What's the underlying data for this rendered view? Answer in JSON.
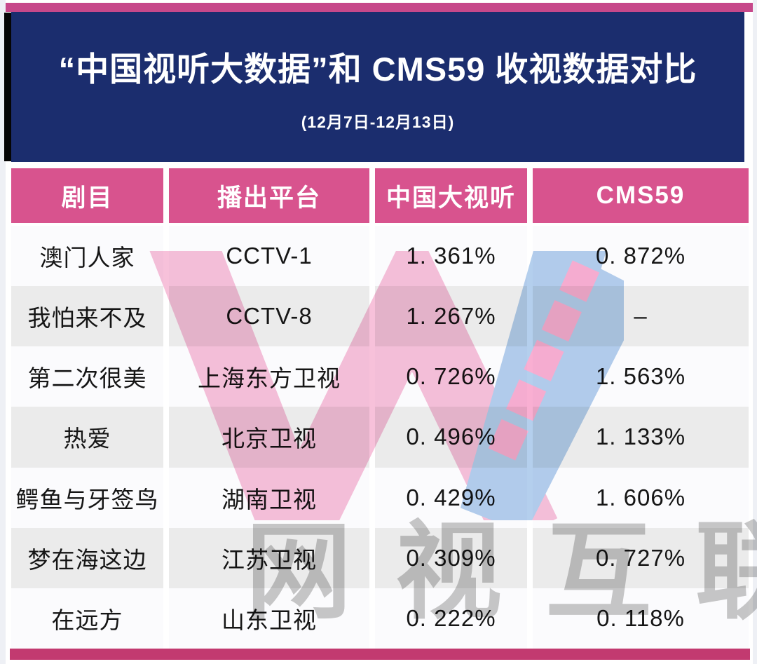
{
  "banner": {
    "title": "“中国视听大数据”和 CMS59 收视数据对比",
    "subtitle": "(12月7日-12月13日)"
  },
  "table": {
    "columns": [
      "剧目",
      "播出平台",
      "中国大视听",
      "CMS59"
    ],
    "rows": [
      {
        "show": "澳门人家",
        "platform": "CCTV-1",
        "big_data": "1. 361%",
        "cms59": "0. 872%"
      },
      {
        "show": "我怕来不及",
        "platform": "CCTV-8",
        "big_data": "1. 267%",
        "cms59": "–"
      },
      {
        "show": "第二次很美",
        "platform": "上海东方卫视",
        "big_data": "0. 726%",
        "cms59": "1. 563%"
      },
      {
        "show": "热爱",
        "platform": "北京卫视",
        "big_data": "0. 496%",
        "cms59": "1. 133%"
      },
      {
        "show": "鳄鱼与牙签鸟",
        "platform": "湖南卫视",
        "big_data": "0. 429%",
        "cms59": "1. 606%"
      },
      {
        "show": "梦在海这边",
        "platform": "江苏卫视",
        "big_data": "0. 309%",
        "cms59": "0. 727%"
      },
      {
        "show": "在远方",
        "platform": "山东卫视",
        "big_data": "0. 222%",
        "cms59": "0. 118%"
      }
    ]
  },
  "watermark": {
    "brand_text": "网视互联",
    "logo": "w-mark-logo"
  },
  "colors": {
    "top_bar": "#c7488a",
    "banner_bg": "#1b2d6e",
    "banner_text": "#ffffff",
    "header_cell_bg": "#d8538e",
    "header_cell_text": "#ffffff",
    "row_bg": "#fbfbfd",
    "row_alt_bg": "#ebebeb",
    "bottom_bar": "#c23a70",
    "watermark_pink": "#f7bcd7",
    "watermark_blue": "#aecbec",
    "watermark_dash": "#f9a8ce",
    "watermark_gray": "#c3c3c3",
    "body_text": "#151515"
  }
}
